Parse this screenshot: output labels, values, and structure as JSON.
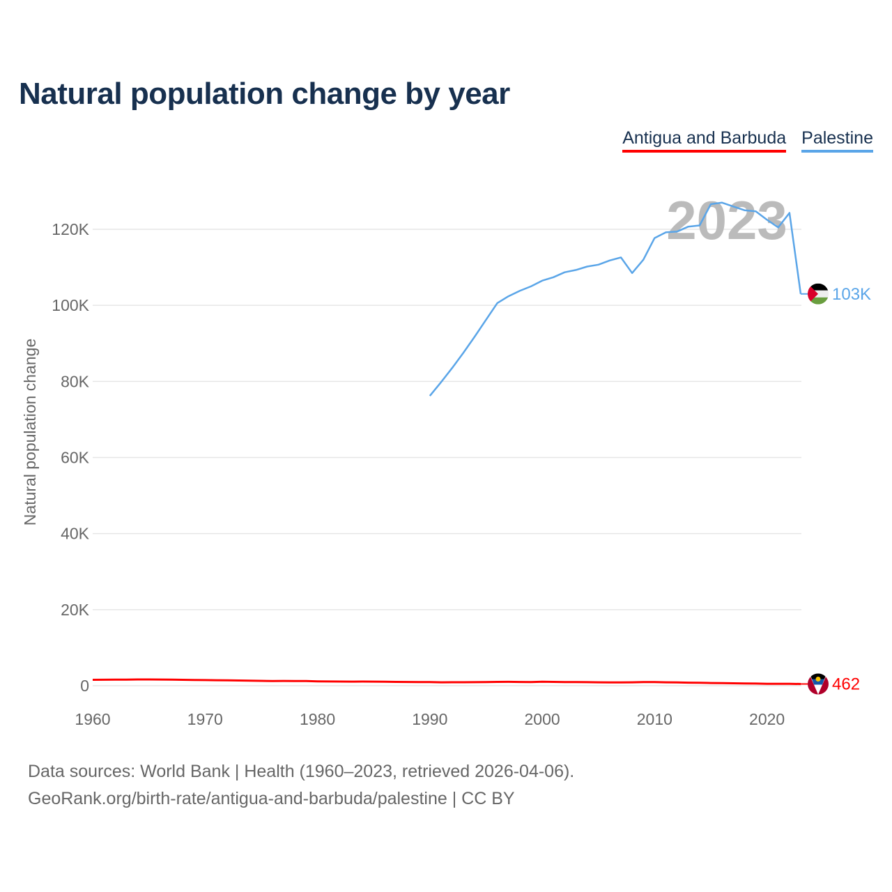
{
  "title": "Natural population change by year",
  "footer": {
    "line1": "Data sources: World Bank | Health (1960–2023, retrieved 2026-04-06).",
    "line2": "GeoRank.org/birth-rate/antigua-and-barbuda/palestine | CC BY"
  },
  "chart_data": {
    "type": "line",
    "title": "Natural population change by year",
    "xlabel": "",
    "ylabel": "Natural population change",
    "xlim": [
      1960,
      2023
    ],
    "ylim": [
      0,
      130000
    ],
    "grid": true,
    "legend_position": "top-right",
    "year_watermark": "2023",
    "x_ticks": [
      1960,
      1970,
      1980,
      1990,
      2000,
      2010,
      2020
    ],
    "x_tick_labels": [
      "1960",
      "1970",
      "1980",
      "1990",
      "2000",
      "2010",
      "2020"
    ],
    "y_ticks": [
      0,
      20000,
      40000,
      60000,
      80000,
      100000,
      120000
    ],
    "y_tick_labels": [
      "0",
      "20K",
      "40K",
      "60K",
      "80K",
      "100K",
      "120K"
    ],
    "series": [
      {
        "name": "Antigua and Barbuda",
        "color": "#ff0000",
        "flag_icon": "antigua-and-barbuda-flag",
        "end_label": "462",
        "start_year": 1960,
        "values": [
          1550,
          1580,
          1600,
          1620,
          1640,
          1650,
          1630,
          1600,
          1560,
          1520,
          1480,
          1440,
          1410,
          1380,
          1340,
          1280,
          1240,
          1260,
          1230,
          1250,
          1150,
          1120,
          1100,
          1090,
          1100,
          1080,
          1050,
          1000,
          990,
          980,
          950,
          900,
          910,
          920,
          930,
          960,
          1010,
          1020,
          990,
          970,
          1050,
          1000,
          980,
          950,
          940,
          900,
          880,
          860,
          900,
          980,
          970,
          900,
          860,
          800,
          780,
          720,
          700,
          650,
          600,
          560,
          520,
          510,
          490,
          462
        ]
      },
      {
        "name": "Palestine",
        "color": "#5aa5e8",
        "flag_icon": "palestine-flag",
        "end_label": "103K",
        "start_year": 1990,
        "values": [
          76200,
          79800,
          83600,
          87600,
          91800,
          96200,
          100600,
          102400,
          103800,
          105000,
          106500,
          107400,
          108700,
          109300,
          110200,
          110700,
          111800,
          112600,
          108500,
          112000,
          117700,
          119200,
          119400,
          120700,
          121000,
          126600,
          127000,
          126000,
          125000,
          124700,
          122500,
          120500,
          124300,
          103000
        ]
      }
    ]
  }
}
